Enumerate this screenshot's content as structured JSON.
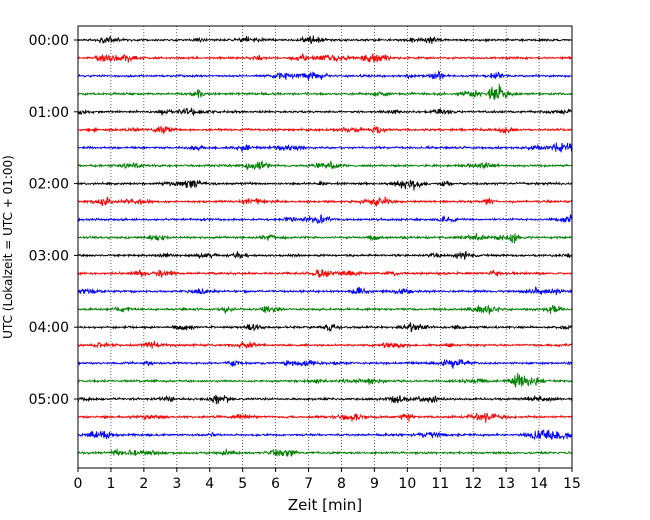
{
  "chart_data": {
    "type": "line",
    "title": "",
    "xlabel": "Zeit  [min]",
    "ylabel": "UTC (Lokalzeit = UTC + 01:00)",
    "xlim": [
      0,
      15
    ],
    "x_ticks": [
      0,
      1,
      2,
      3,
      4,
      5,
      6,
      7,
      8,
      9,
      10,
      11,
      12,
      13,
      14,
      15
    ],
    "x_tick_labels": [
      "0",
      "1",
      "2",
      "3",
      "4",
      "5",
      "6",
      "7",
      "8",
      "9",
      "10",
      "11",
      "12",
      "13",
      "14",
      "15"
    ],
    "y_tick_labels": [
      "00:00",
      "01:00",
      "02:00",
      "03:00",
      "04:00",
      "05:00"
    ],
    "y_tick_row_index": [
      0,
      4,
      8,
      12,
      16,
      20
    ],
    "row_interval_minutes": 15,
    "grid": "vertical-dotted",
    "color_cycle": [
      "#000000",
      "#ff0000",
      "#0000ff",
      "#008000"
    ],
    "rows": [
      {
        "start": "00:00",
        "color": "#000000"
      },
      {
        "start": "00:15",
        "color": "#ff0000"
      },
      {
        "start": "00:30",
        "color": "#0000ff"
      },
      {
        "start": "00:45",
        "color": "#008000"
      },
      {
        "start": "01:00",
        "color": "#000000"
      },
      {
        "start": "01:15",
        "color": "#ff0000"
      },
      {
        "start": "01:30",
        "color": "#0000ff"
      },
      {
        "start": "01:45",
        "color": "#008000"
      },
      {
        "start": "02:00",
        "color": "#000000"
      },
      {
        "start": "02:15",
        "color": "#ff0000"
      },
      {
        "start": "02:30",
        "color": "#0000ff"
      },
      {
        "start": "02:45",
        "color": "#008000"
      },
      {
        "start": "03:00",
        "color": "#000000"
      },
      {
        "start": "03:15",
        "color": "#ff0000"
      },
      {
        "start": "03:30",
        "color": "#0000ff"
      },
      {
        "start": "03:45",
        "color": "#008000"
      },
      {
        "start": "04:00",
        "color": "#000000"
      },
      {
        "start": "04:15",
        "color": "#ff0000"
      },
      {
        "start": "04:30",
        "color": "#0000ff"
      },
      {
        "start": "04:45",
        "color": "#008000"
      },
      {
        "start": "05:00",
        "color": "#000000"
      },
      {
        "start": "05:15",
        "color": "#ff0000"
      },
      {
        "start": "05:30",
        "color": "#0000ff"
      },
      {
        "start": "05:45",
        "color": "#008000"
      }
    ]
  }
}
